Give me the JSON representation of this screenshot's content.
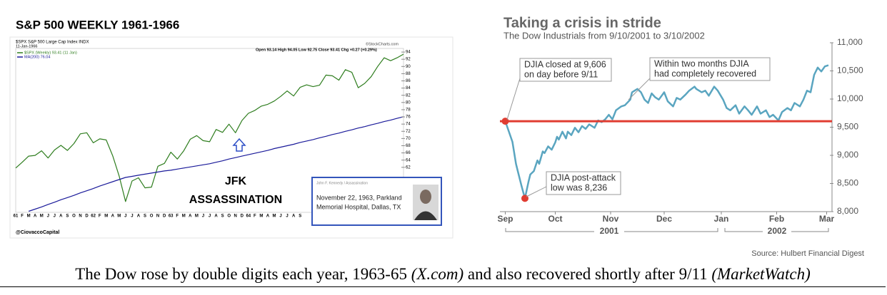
{
  "chart_data": [
    {
      "type": "line",
      "title": "S&P 500 WEEKLY 1961-1966",
      "symbol_line": "$SPX S&P 500 Large Cap Index INDX",
      "date": "11-Jan-1966",
      "quote": "Open 93.14 High 94.05 Low 92.75 Close 93.41 Chg +0.27 (+0.29%)",
      "credit": "©StockCharts.com",
      "categories": [
        "61",
        "F",
        "M",
        "A",
        "M",
        "J",
        "J",
        "A",
        "S",
        "O",
        "N",
        "D",
        "62",
        "F",
        "M",
        "A",
        "M",
        "J",
        "J",
        "A",
        "S",
        "O",
        "N",
        "D",
        "63",
        "F",
        "M",
        "A",
        "M",
        "J",
        "J",
        "A",
        "S",
        "O",
        "N",
        "D",
        "64",
        "F",
        "M",
        "A",
        "M",
        "J",
        "J",
        "A",
        "S",
        null,
        null,
        null,
        null,
        null,
        null,
        null,
        null,
        null,
        null,
        null,
        null,
        null,
        null,
        null,
        null
      ],
      "series": [
        {
          "name": "$SPX (Weekly) 93.41 (11 Jan)",
          "color": "#2e7d1e",
          "values": [
            61.8,
            63.4,
            65.1,
            65.3,
            66.6,
            64.6,
            66.8,
            68.1,
            66.7,
            68.6,
            71.3,
            71.6,
            68.8,
            69.9,
            69.6,
            65.2,
            59.6,
            52.5,
            58.2,
            59.1,
            56.3,
            56.5,
            62.3,
            63.1,
            66.2,
            64.3,
            66.6,
            69.8,
            70.8,
            69.4,
            69.1,
            72.5,
            71.7,
            74.0,
            71.6,
            75.0,
            77.0,
            77.8,
            79.0,
            79.5,
            80.4,
            81.7,
            83.2,
            81.8,
            84.2,
            84.9,
            84.4,
            84.8,
            87.6,
            87.4,
            86.2,
            89.1,
            88.4,
            84.1,
            85.3,
            87.2,
            90.0,
            92.4,
            91.6,
            92.4,
            93.41
          ]
        },
        {
          "name": "MA(200) 76.04",
          "color": "#1a1a9a",
          "values": [
            null,
            null,
            49.8,
            50.4,
            51.0,
            51.7,
            52.3,
            53.0,
            53.6,
            54.2,
            54.9,
            55.5,
            56.1,
            56.8,
            57.4,
            58.0,
            58.6,
            59.2,
            59.5,
            59.8,
            60.1,
            60.4,
            60.7,
            61.0,
            61.2,
            61.5,
            61.8,
            62.1,
            62.4,
            62.7,
            63.0,
            63.4,
            63.8,
            64.3,
            64.7,
            65.1,
            65.5,
            65.9,
            66.3,
            66.7,
            67.2,
            67.6,
            68.0,
            68.4,
            68.9,
            69.3,
            69.7,
            70.2,
            70.6,
            71.1,
            71.5,
            72.0,
            72.4,
            72.9,
            73.3,
            73.8,
            74.2,
            74.7,
            75.1,
            75.6,
            76.04
          ]
        }
      ],
      "ylim": [
        49.5,
        95
      ],
      "yticks": [
        62,
        64,
        66,
        68,
        70,
        72,
        74,
        76,
        78,
        80,
        82,
        84,
        86,
        88,
        90,
        92,
        94
      ],
      "grid": false,
      "annotation": [
        "JFK",
        "ASSASSINATION"
      ],
      "inset": {
        "header": "John F. Kennedy / Assassination",
        "lines": [
          "November 22, 1963, Parkland",
          "Memorial Hospital, Dallas, TX"
        ]
      },
      "watermark": "@CiovaccoCapital"
    },
    {
      "type": "line",
      "title": "Taking a crisis in stride",
      "subtitle": "The Dow Industrials from 9/10/2001 to 3/10/2002",
      "x": [
        0,
        4,
        6,
        7,
        9,
        11,
        13,
        14,
        16,
        18,
        19,
        21,
        22,
        24,
        26,
        28,
        29,
        30,
        32,
        34,
        35,
        37,
        39,
        41,
        43,
        45,
        47,
        50,
        52,
        54,
        56,
        58,
        60,
        62,
        65,
        67,
        70,
        71,
        74,
        76,
        78,
        80,
        82,
        84,
        86,
        89,
        91,
        94,
        96,
        98,
        101,
        103,
        106,
        107,
        110,
        112,
        114,
        117,
        119,
        122,
        124,
        126,
        129,
        131,
        134,
        136,
        138,
        141,
        143,
        146,
        148,
        150,
        153,
        155,
        158,
        160,
        162,
        165,
        167,
        169,
        171,
        173,
        175,
        177,
        179,
        181
      ],
      "values": [
        9606,
        9240,
        8850,
        8720,
        8470,
        8236,
        8530,
        8660,
        8720,
        8910,
        8850,
        9070,
        9040,
        9160,
        9100,
        9230,
        9330,
        9280,
        9420,
        9300,
        9420,
        9360,
        9490,
        9410,
        9520,
        9470,
        9550,
        9490,
        9620,
        9590,
        9640,
        9720,
        9640,
        9800,
        9870,
        9890,
        9990,
        10120,
        10180,
        10120,
        9990,
        9930,
        10100,
        10030,
        9990,
        10120,
        9960,
        9870,
        10020,
        9990,
        10080,
        10150,
        10220,
        10180,
        10120,
        10150,
        10060,
        10220,
        10150,
        9990,
        9840,
        9800,
        9890,
        9740,
        9870,
        9800,
        9720,
        9870,
        9740,
        9800,
        9680,
        9720,
        9620,
        9770,
        9840,
        9800,
        9930,
        9870,
        9990,
        10150,
        10120,
        10430,
        10560,
        10490,
        10580,
        10600
      ],
      "color": "#5aa5c0",
      "xlim": [
        -3,
        183
      ],
      "xticks": [
        {
          "value": 0,
          "label": "Sep"
        },
        {
          "value": 28,
          "label": "Oct"
        },
        {
          "value": 59,
          "label": "Nov"
        },
        {
          "value": 89,
          "label": "Dec"
        },
        {
          "value": 121,
          "label": "Jan"
        },
        {
          "value": 152,
          "label": "Feb"
        },
        {
          "value": 180,
          "label": "Mar"
        }
      ],
      "ylim": [
        8000,
        11000
      ],
      "yticks": [
        {
          "value": 8000,
          "label": "8,000"
        },
        {
          "value": 8500,
          "label": "8,500"
        },
        {
          "value": 9000,
          "label": "9,000"
        },
        {
          "value": 9500,
          "label": "9,500"
        },
        {
          "value": 10000,
          "label": "10,000"
        },
        {
          "value": 10500,
          "label": "10,500"
        },
        {
          "value": 11000,
          "label": "11,000"
        }
      ],
      "grid": false,
      "hline": {
        "value": 9606,
        "color": "#e03c31"
      },
      "annotations": [
        [
          "DJIA closed at 9,606",
          "on day before 9/11"
        ],
        [
          "Within two months DJIA",
          "had completely recovered"
        ],
        [
          "DJIA post-attack",
          "low was 8,236"
        ]
      ],
      "year_labels": [
        "2001",
        "2002"
      ],
      "source": "Source: Hulbert Financial Digest"
    }
  ],
  "caption": [
    "The Dow rose by double digits each year, 1963-65",
    "(X.com)",
    "and also recovered shortly after 9/11",
    "(MarketWatch)"
  ]
}
